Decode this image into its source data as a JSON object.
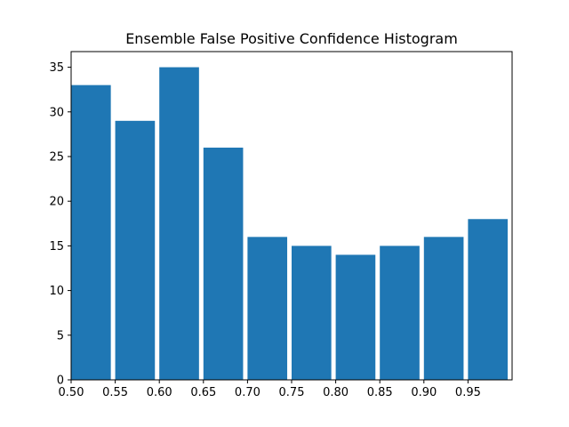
{
  "chart_data": {
    "type": "bar",
    "title": "Ensemble False Positive Confidence Histogram",
    "xlabel": "",
    "ylabel": "",
    "bins": [
      {
        "start": 0.5,
        "end": 0.545,
        "value": 33
      },
      {
        "start": 0.55,
        "end": 0.595,
        "value": 29
      },
      {
        "start": 0.6,
        "end": 0.645,
        "value": 35
      },
      {
        "start": 0.65,
        "end": 0.695,
        "value": 26
      },
      {
        "start": 0.7,
        "end": 0.745,
        "value": 16
      },
      {
        "start": 0.75,
        "end": 0.795,
        "value": 15
      },
      {
        "start": 0.8,
        "end": 0.845,
        "value": 14
      },
      {
        "start": 0.85,
        "end": 0.895,
        "value": 15
      },
      {
        "start": 0.9,
        "end": 0.945,
        "value": 16
      },
      {
        "start": 0.95,
        "end": 0.995,
        "value": 18
      }
    ],
    "xlim": [
      0.5,
      1.0
    ],
    "ylim": [
      0,
      36.75
    ],
    "xticks": [
      "0.50",
      "0.55",
      "0.60",
      "0.65",
      "0.70",
      "0.75",
      "0.80",
      "0.85",
      "0.90",
      "0.95"
    ],
    "yticks": [
      "0",
      "5",
      "10",
      "15",
      "20",
      "25",
      "30",
      "35"
    ],
    "bar_color": "#1f77b4",
    "grid": false,
    "legend": "none"
  }
}
